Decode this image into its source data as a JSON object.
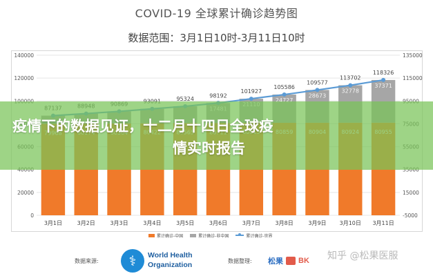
{
  "title": "COVID-19 全球累计确诊趋势图",
  "subtitle": "数据范围：3月1日10时-3月11日10时",
  "banner": {
    "line1": "疫情下的数据见证，十二月十四日全球疫",
    "line2": "情实时报告"
  },
  "footer": {
    "source_label": "数据来源:",
    "source_name_line1": "World Health",
    "source_name_line2": "Organization",
    "compiled_label": "数据整理:",
    "brand_zh": "松果",
    "brand_en": "BK",
    "watermark": "知乎 @松果医服"
  },
  "colors": {
    "china": "#f07a2a",
    "non_china": "#a6a6a6",
    "world": "#5b9bd5",
    "banner": "#78c358"
  },
  "chart_data": {
    "type": "bar",
    "stacked": true,
    "title": "COVID-19 全球累计确诊趋势图",
    "subtitle": "数据范围：3月1日10时-3月11日10时",
    "categories": [
      "3月1日",
      "3月2日",
      "3月3日",
      "3月4日",
      "3月5日",
      "3月6日",
      "3月7日",
      "3月8日",
      "3月9日",
      "3月10日",
      "3月11日"
    ],
    "series": [
      {
        "name": "累计确诊-中国",
        "type": "bar",
        "color": "#f07a2a",
        "values": [
          79968,
          80174,
          80304,
          80422,
          80565,
          80711,
          80813,
          80859,
          80904,
          80924,
          80955
        ]
      },
      {
        "name": "累计确诊-非中国",
        "type": "bar",
        "color": "#a6a6a6",
        "values": [
          7169,
          8774,
          10565,
          12669,
          14759,
          17481,
          21110,
          24727,
          28673,
          32778,
          37371
        ]
      },
      {
        "name": "累计确诊-世界",
        "type": "line",
        "color": "#5b9bd5",
        "values": [
          87137,
          88948,
          90869,
          93091,
          95324,
          98192,
          101927,
          105586,
          109577,
          113702,
          118326
        ]
      }
    ],
    "bar_labels_visible": {
      "china": [
        "79968",
        "80174",
        "80304",
        "80422",
        "80565",
        "80711",
        "80813",
        "80859",
        "80904",
        "80924",
        "80955"
      ],
      "non_china": [
        "",
        "",
        "",
        "",
        "",
        "17481",
        "21110",
        "24727",
        "28673",
        "32778",
        "37371"
      ]
    },
    "ylim": [
      0,
      140000
    ],
    "yticks": [
      "0",
      "20000",
      "40000",
      "60000",
      "80000",
      "100000",
      "120000",
      "140000"
    ],
    "y2ticks": [
      "-5000",
      "15000",
      "35000",
      "55000",
      "75000",
      "95000",
      "115000",
      "135000"
    ],
    "grid": true,
    "legend_position": "bottom",
    "xlabel": "",
    "ylabel": ""
  }
}
